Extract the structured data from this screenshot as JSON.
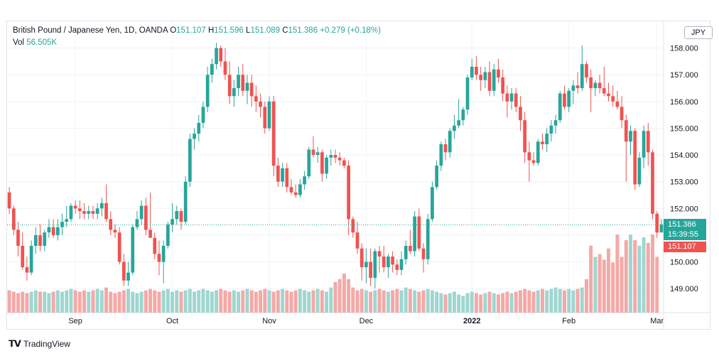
{
  "legend": {
    "symbol": "British Pound / Japanese Yen, 1D, OANDA",
    "o_label": "O",
    "o_value": "151.107",
    "h_label": "H",
    "h_value": "151.596",
    "l_label": "L",
    "l_value": "151.089",
    "c_label": "C",
    "c_value": "151.386",
    "change": "+0.279 (+0.18%)",
    "vol_label": "Vol",
    "vol_value": "56.505K"
  },
  "currency_badge": "JPY",
  "last_price": "151.386",
  "countdown": "15:39:55",
  "open_price": "151.107",
  "brand": "TradingView",
  "colors": {
    "up": "#26a69a",
    "down": "#ef5350",
    "vol_up": "#9fd6d0",
    "vol_down": "#f4a9a7"
  },
  "chart_data": {
    "type": "candlestick",
    "title": "British Pound / Japanese Yen, 1D, OANDA",
    "ylim": [
      148.1,
      159.0
    ],
    "y_ticks": [
      149,
      150,
      151,
      152,
      153,
      154,
      155,
      156,
      157,
      158
    ],
    "x_ticks": [
      {
        "label": "Sep",
        "index": 15
      },
      {
        "label": "Oct",
        "index": 37
      },
      {
        "label": "Nov",
        "index": 59
      },
      {
        "label": "Dec",
        "index": 81
      },
      {
        "label": "2022",
        "index": 105
      },
      {
        "label": "Feb",
        "index": 127
      },
      {
        "label": "Mar",
        "index": 147
      }
    ],
    "last_price_line": 151.386,
    "candles": [
      [
        152.6,
        152.8,
        151.8,
        152.0
      ],
      [
        152.0,
        152.1,
        151.0,
        151.2
      ],
      [
        151.2,
        151.5,
        150.2,
        150.6
      ],
      [
        150.6,
        151.1,
        149.7,
        149.8
      ],
      [
        149.8,
        150.2,
        149.3,
        149.6
      ],
      [
        149.6,
        150.8,
        149.5,
        150.6
      ],
      [
        150.6,
        151.3,
        150.3,
        151.0
      ],
      [
        151.0,
        151.4,
        150.4,
        150.6
      ],
      [
        150.6,
        151.2,
        150.4,
        151.1
      ],
      [
        151.1,
        151.6,
        150.9,
        151.3
      ],
      [
        151.3,
        151.6,
        150.9,
        151.0
      ],
      [
        151.0,
        151.6,
        150.8,
        151.3
      ],
      [
        151.3,
        151.8,
        151.0,
        151.5
      ],
      [
        151.5,
        152.1,
        151.3,
        151.6
      ],
      [
        151.6,
        152.2,
        151.5,
        152.1
      ],
      [
        152.1,
        152.3,
        151.8,
        152.0
      ],
      [
        152.0,
        152.3,
        151.6,
        151.9
      ],
      [
        151.9,
        152.2,
        151.6,
        151.8
      ],
      [
        151.8,
        152.1,
        151.6,
        151.9
      ],
      [
        151.9,
        152.1,
        151.6,
        151.8
      ],
      [
        151.8,
        152.2,
        151.6,
        152.0
      ],
      [
        152.0,
        152.4,
        151.7,
        152.2
      ],
      [
        152.2,
        152.9,
        151.5,
        151.6
      ],
      [
        151.6,
        151.9,
        151.0,
        151.2
      ],
      [
        151.2,
        151.4,
        150.9,
        151.1
      ],
      [
        151.1,
        151.3,
        149.9,
        150.0
      ],
      [
        150.0,
        150.3,
        149.1,
        149.3
      ],
      [
        149.3,
        150.0,
        149.1,
        149.6
      ],
      [
        149.6,
        151.4,
        149.5,
        151.3
      ],
      [
        151.3,
        151.9,
        151.2,
        151.6
      ],
      [
        151.6,
        152.3,
        151.4,
        152.1
      ],
      [
        152.1,
        152.4,
        151.0,
        151.2
      ],
      [
        151.2,
        152.6,
        150.9,
        150.9
      ],
      [
        150.9,
        151.1,
        150.1,
        150.3
      ],
      [
        150.3,
        150.8,
        149.5,
        150.0
      ],
      [
        150.0,
        150.8,
        149.2,
        150.6
      ],
      [
        150.6,
        151.5,
        150.5,
        151.4
      ],
      [
        151.4,
        152.2,
        151.1,
        151.6
      ],
      [
        151.6,
        152.1,
        151.4,
        151.9
      ],
      [
        151.9,
        152.0,
        151.2,
        151.5
      ],
      [
        151.5,
        153.2,
        151.4,
        153.0
      ],
      [
        153.0,
        154.8,
        152.8,
        154.6
      ],
      [
        154.6,
        155.0,
        154.2,
        154.8
      ],
      [
        154.8,
        155.5,
        154.5,
        155.2
      ],
      [
        155.2,
        156.0,
        155.0,
        155.8
      ],
      [
        155.8,
        157.3,
        155.6,
        157.0
      ],
      [
        157.0,
        157.6,
        156.7,
        157.4
      ],
      [
        157.4,
        158.2,
        157.2,
        158.0
      ],
      [
        158.0,
        158.1,
        157.3,
        157.5
      ],
      [
        157.5,
        158.0,
        156.8,
        157.0
      ],
      [
        157.0,
        157.5,
        155.9,
        156.2
      ],
      [
        156.2,
        156.8,
        155.8,
        156.5
      ],
      [
        156.5,
        157.3,
        156.2,
        157.0
      ],
      [
        157.0,
        157.4,
        156.2,
        156.4
      ],
      [
        156.4,
        157.0,
        155.9,
        156.7
      ],
      [
        156.7,
        157.0,
        155.8,
        156.2
      ],
      [
        156.2,
        156.6,
        155.6,
        156.0
      ],
      [
        156.0,
        156.3,
        155.4,
        155.8
      ],
      [
        155.8,
        156.0,
        154.8,
        155.0
      ],
      [
        155.0,
        156.2,
        154.9,
        156.0
      ],
      [
        156.0,
        156.2,
        153.2,
        153.6
      ],
      [
        153.6,
        153.9,
        152.8,
        153.0
      ],
      [
        153.0,
        153.7,
        152.8,
        153.5
      ],
      [
        153.5,
        153.7,
        152.6,
        152.8
      ],
      [
        152.8,
        153.1,
        152.5,
        152.6
      ],
      [
        152.6,
        152.9,
        152.4,
        152.5
      ],
      [
        152.5,
        153.1,
        152.4,
        152.9
      ],
      [
        152.9,
        153.4,
        152.7,
        153.2
      ],
      [
        153.2,
        154.3,
        153.1,
        154.2
      ],
      [
        154.2,
        154.7,
        153.9,
        154.0
      ],
      [
        154.0,
        154.3,
        153.7,
        154.1
      ],
      [
        154.1,
        154.2,
        153.0,
        153.3
      ],
      [
        153.3,
        154.0,
        153.1,
        153.9
      ],
      [
        153.9,
        154.2,
        153.6,
        154.0
      ],
      [
        154.0,
        154.2,
        153.7,
        153.9
      ],
      [
        153.9,
        154.1,
        153.6,
        153.8
      ],
      [
        153.8,
        153.9,
        153.5,
        153.6
      ],
      [
        153.6,
        153.8,
        151.0,
        151.6
      ],
      [
        151.6,
        151.7,
        150.9,
        151.1
      ],
      [
        151.1,
        151.5,
        150.3,
        150.5
      ],
      [
        150.5,
        150.7,
        149.3,
        149.8
      ],
      [
        149.8,
        150.5,
        149.2,
        150.0
      ],
      [
        150.0,
        150.5,
        149.1,
        149.4
      ],
      [
        149.4,
        150.5,
        149.0,
        150.4
      ],
      [
        150.4,
        150.6,
        149.6,
        150.2
      ],
      [
        150.2,
        150.6,
        149.6,
        149.8
      ],
      [
        149.8,
        150.3,
        149.4,
        150.2
      ],
      [
        150.2,
        150.4,
        149.6,
        149.9
      ],
      [
        149.9,
        150.1,
        149.5,
        149.7
      ],
      [
        149.7,
        150.4,
        149.5,
        150.1
      ],
      [
        150.1,
        150.8,
        149.9,
        150.6
      ],
      [
        150.6,
        151.2,
        150.3,
        150.4
      ],
      [
        150.4,
        151.9,
        150.2,
        151.7
      ],
      [
        151.7,
        152.0,
        150.4,
        150.5
      ],
      [
        150.5,
        150.7,
        149.6,
        150.1
      ],
      [
        150.1,
        151.8,
        149.9,
        151.6
      ],
      [
        151.6,
        153.0,
        151.5,
        152.8
      ],
      [
        152.8,
        153.8,
        152.7,
        153.6
      ],
      [
        153.6,
        154.5,
        153.4,
        154.4
      ],
      [
        154.4,
        154.6,
        153.8,
        154.1
      ],
      [
        154.1,
        155.0,
        153.9,
        154.9
      ],
      [
        154.9,
        155.5,
        154.6,
        155.1
      ],
      [
        155.1,
        156.1,
        155.0,
        155.3
      ],
      [
        155.3,
        155.8,
        155.1,
        155.7
      ],
      [
        155.7,
        157.0,
        155.5,
        156.9
      ],
      [
        156.9,
        157.6,
        156.8,
        157.3
      ],
      [
        157.3,
        157.7,
        156.8,
        157.0
      ],
      [
        157.0,
        157.3,
        156.4,
        156.8
      ],
      [
        156.8,
        157.3,
        156.5,
        157.1
      ],
      [
        157.1,
        157.5,
        156.2,
        156.4
      ],
      [
        156.4,
        157.4,
        156.2,
        157.2
      ],
      [
        157.2,
        157.6,
        156.7,
        156.9
      ],
      [
        156.9,
        157.2,
        156.0,
        156.3
      ],
      [
        156.3,
        156.6,
        155.4,
        156.0
      ],
      [
        156.0,
        156.5,
        155.7,
        156.3
      ],
      [
        156.3,
        156.5,
        155.6,
        155.8
      ],
      [
        155.8,
        156.2,
        154.9,
        155.3
      ],
      [
        155.3,
        155.6,
        153.7,
        154.1
      ],
      [
        154.1,
        154.5,
        153.0,
        153.8
      ],
      [
        153.8,
        154.1,
        153.6,
        153.7
      ],
      [
        153.7,
        154.6,
        153.6,
        154.5
      ],
      [
        154.5,
        154.8,
        154.2,
        154.4
      ],
      [
        154.4,
        155.0,
        154.1,
        154.8
      ],
      [
        154.8,
        155.3,
        154.5,
        155.1
      ],
      [
        155.1,
        155.5,
        154.8,
        155.3
      ],
      [
        155.3,
        156.4,
        155.2,
        156.3
      ],
      [
        156.3,
        156.6,
        155.7,
        155.8
      ],
      [
        155.8,
        156.5,
        155.6,
        156.4
      ],
      [
        156.4,
        156.8,
        155.9,
        156.6
      ],
      [
        156.6,
        157.1,
        156.3,
        156.5
      ],
      [
        156.5,
        158.1,
        156.4,
        157.4
      ],
      [
        157.4,
        157.5,
        156.7,
        156.9
      ],
      [
        156.9,
        157.2,
        155.6,
        156.5
      ],
      [
        156.5,
        156.8,
        156.2,
        156.7
      ],
      [
        156.7,
        157.0,
        156.3,
        156.5
      ],
      [
        156.5,
        157.3,
        156.2,
        156.3
      ],
      [
        156.3,
        156.7,
        156.0,
        156.2
      ],
      [
        156.2,
        156.6,
        155.8,
        156.0
      ],
      [
        156.0,
        156.4,
        155.7,
        155.8
      ],
      [
        155.8,
        156.2,
        155.0,
        155.3
      ],
      [
        155.3,
        155.5,
        153.0,
        154.5
      ],
      [
        154.5,
        155.1,
        154.0,
        154.9
      ],
      [
        154.9,
        155.0,
        152.7,
        152.9
      ],
      [
        152.9,
        154.1,
        152.8,
        153.9
      ],
      [
        153.9,
        155.1,
        153.5,
        154.9
      ],
      [
        154.9,
        155.2,
        153.6,
        154.1
      ],
      [
        154.1,
        154.2,
        151.6,
        151.8
      ],
      [
        151.8,
        151.9,
        150.9,
        151.1
      ],
      [
        151.1,
        151.6,
        151.1,
        151.4
      ]
    ],
    "volume": [
      16,
      15,
      14,
      15,
      14,
      15,
      16,
      15,
      15,
      14,
      15,
      16,
      15,
      16,
      17,
      16,
      15,
      16,
      15,
      16,
      17,
      16,
      18,
      15,
      14,
      15,
      16,
      17,
      15,
      14,
      15,
      16,
      17,
      16,
      15,
      16,
      17,
      15,
      16,
      15,
      16,
      17,
      15,
      16,
      17,
      16,
      15,
      16,
      17,
      16,
      15,
      16,
      15,
      16,
      17,
      16,
      15,
      16,
      17,
      16,
      15,
      16,
      17,
      16,
      15,
      16,
      17,
      16,
      15,
      16,
      17,
      16,
      15,
      18,
      22,
      24,
      28,
      24,
      18,
      16,
      17,
      16,
      15,
      16,
      17,
      16,
      15,
      16,
      17,
      16,
      18,
      17,
      16,
      15,
      16,
      17,
      16,
      15,
      14,
      13,
      14,
      15,
      13,
      12,
      14,
      15,
      14,
      13,
      14,
      15,
      14,
      13,
      14,
      15,
      14,
      15,
      16,
      17,
      16,
      15,
      16,
      17,
      16,
      17,
      18,
      17,
      16,
      17,
      16,
      17,
      18,
      24,
      48,
      40,
      42,
      38,
      46,
      36,
      56,
      40,
      52,
      56,
      52,
      48,
      54,
      50,
      56,
      40
    ]
  }
}
